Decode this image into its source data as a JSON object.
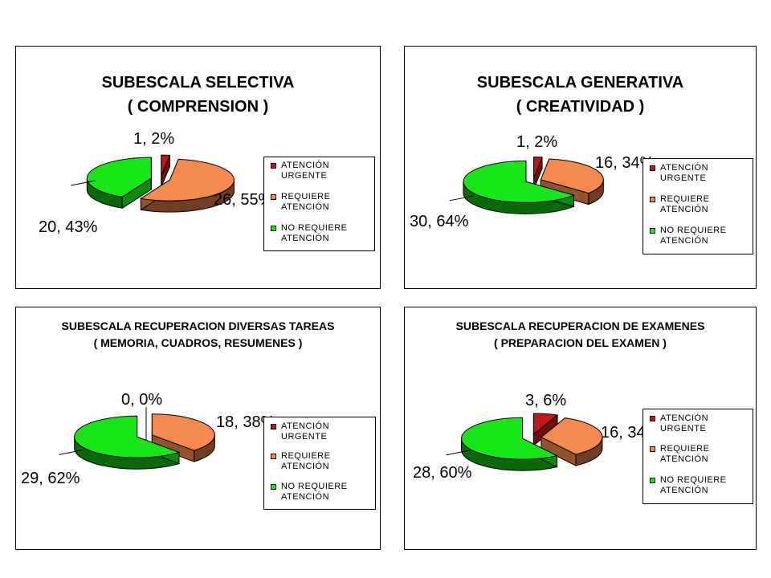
{
  "colors": {
    "urgent": "#c01818",
    "requiere": "#f48a50",
    "no_requiere": "#19e619"
  },
  "chart_data": [
    {
      "type": "pie",
      "title": [
        "SUBESCALA SELECTIVA",
        "( COMPRENSION )"
      ],
      "categories": [
        "ATENCIÓN URGENTE",
        "REQUIERE ATENCIÓN",
        "NO REQUIERE ATENCIÓN"
      ],
      "values": [
        1,
        26,
        20
      ],
      "percents": [
        2,
        55,
        43
      ],
      "data_labels": [
        "1, 2%",
        "26, 55%",
        "20, 43%"
      ],
      "legend": [
        "ATENCIÓN\nURGENTE",
        "REQUIERE\nATENCIÓN",
        "NO REQUIERE\nATENCIÓN"
      ],
      "legend_placement": "right",
      "style": "3d-exploded"
    },
    {
      "type": "pie",
      "title": [
        "SUBESCALA GENERATIVA",
        "( CREATIVIDAD )"
      ],
      "categories": [
        "ATENCIÓN URGENTE",
        "REQUIERE ATENCIÓN",
        "NO REQUIERE ATENCIÓN"
      ],
      "values": [
        1,
        16,
        30
      ],
      "percents": [
        2,
        34,
        64
      ],
      "data_labels": [
        "1, 2%",
        "16, 34%",
        "30, 64%"
      ],
      "legend": [
        "ATENCIÓN\nURGENTE",
        "REQUIERE\nATENCIÓN",
        "NO REQUIERE\nATENCIÓN"
      ],
      "legend_placement": "right",
      "style": "3d-exploded"
    },
    {
      "type": "pie",
      "title": [
        "SUBESCALA  RECUPERACION  DIVERSAS  TAREAS",
        "( MEMORIA,  CUADROS,  RESUMENES  )"
      ],
      "categories": [
        "ATENCIÓN URGENTE",
        "REQUIERE ATENCIÓN",
        "NO REQUIERE ATENCIÓN"
      ],
      "values": [
        0,
        18,
        29
      ],
      "percents": [
        0,
        38,
        62
      ],
      "data_labels": [
        "0, 0%",
        "18, 38%",
        "29, 62%"
      ],
      "legend": [
        "ATENCIÓN\nURGENTE",
        "REQUIERE\nATENCIÓN",
        "NO REQUIERE\nATENCIÓN"
      ],
      "legend_placement": "right",
      "style": "3d-exploded"
    },
    {
      "type": "pie",
      "title": [
        "SUBESCALA RECUPERACION DE EXAMENES",
        "( PREPARACION DEL EXAMEN )"
      ],
      "categories": [
        "ATENCIÓN URGENTE",
        "REQUIERE ATENCIÓN",
        "NO REQUIERE ATENCIÓN"
      ],
      "values": [
        3,
        16,
        28
      ],
      "percents": [
        6,
        34,
        60
      ],
      "data_labels": [
        "3, 6%",
        "16, 34%",
        "28, 60%"
      ],
      "legend": [
        "ATENCIÓN\nURGENTE",
        "REQUIERE\nATENCIÓN",
        "NO REQUIERE\nATENCIÓN"
      ],
      "legend_placement": "right",
      "style": "3d-exploded"
    }
  ]
}
